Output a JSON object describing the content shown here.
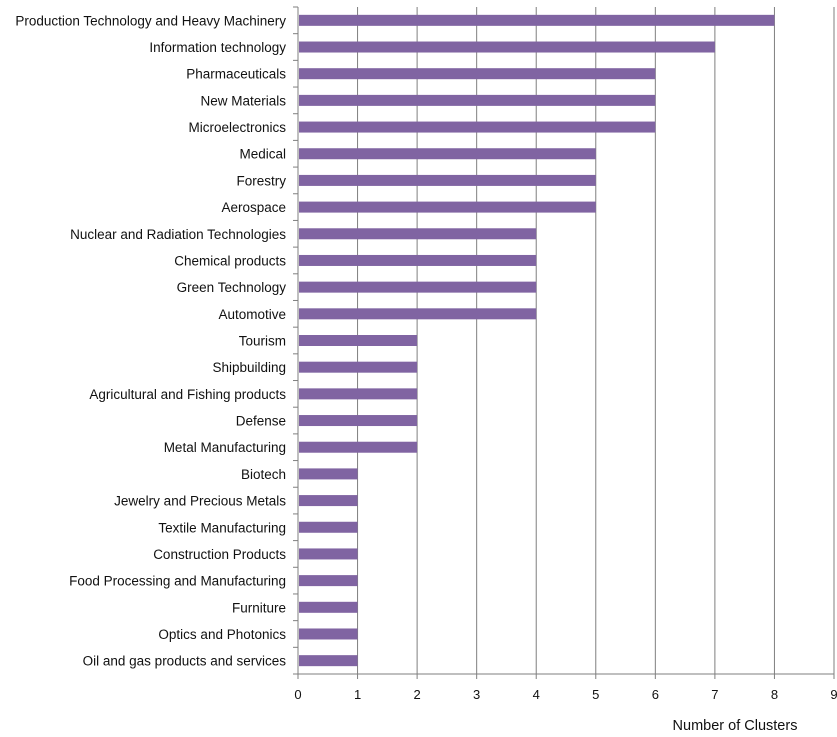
{
  "chart_data": {
    "type": "bar",
    "orientation": "horizontal",
    "categories": [
      "Production Technology and Heavy Machinery",
      "Information technology",
      "Pharmaceuticals",
      "New Materials",
      "Microelectronics",
      "Medical",
      "Forestry",
      "Aerospace",
      "Nuclear and Radiation Technologies",
      "Chemical products",
      "Green Technology",
      "Automotive",
      "Tourism",
      "Shipbuilding",
      "Agricultural and Fishing products",
      "Defense",
      "Metal Manufacturing",
      "Biotech",
      "Jewelry and Precious Metals",
      "Textile Manufacturing",
      "Construction Products",
      "Food Processing and Manufacturing",
      "Furniture",
      "Optics and Photonics",
      "Oil and gas products and services"
    ],
    "values": [
      8,
      7,
      6,
      6,
      6,
      5,
      5,
      5,
      4,
      4,
      4,
      4,
      2,
      2,
      2,
      2,
      2,
      1,
      1,
      1,
      1,
      1,
      1,
      1,
      1
    ],
    "xlabel": "Number of Clusters",
    "ylabel": "",
    "xlim": [
      0,
      9
    ],
    "xticks": [
      "0",
      "1",
      "2",
      "3",
      "4",
      "5",
      "6",
      "7",
      "8",
      "9"
    ],
    "grid": "vertical",
    "legend": "none",
    "colors": {
      "bar": "#8064a2",
      "grid": "#7f7f7f",
      "axis": "#7f7f7f"
    }
  }
}
